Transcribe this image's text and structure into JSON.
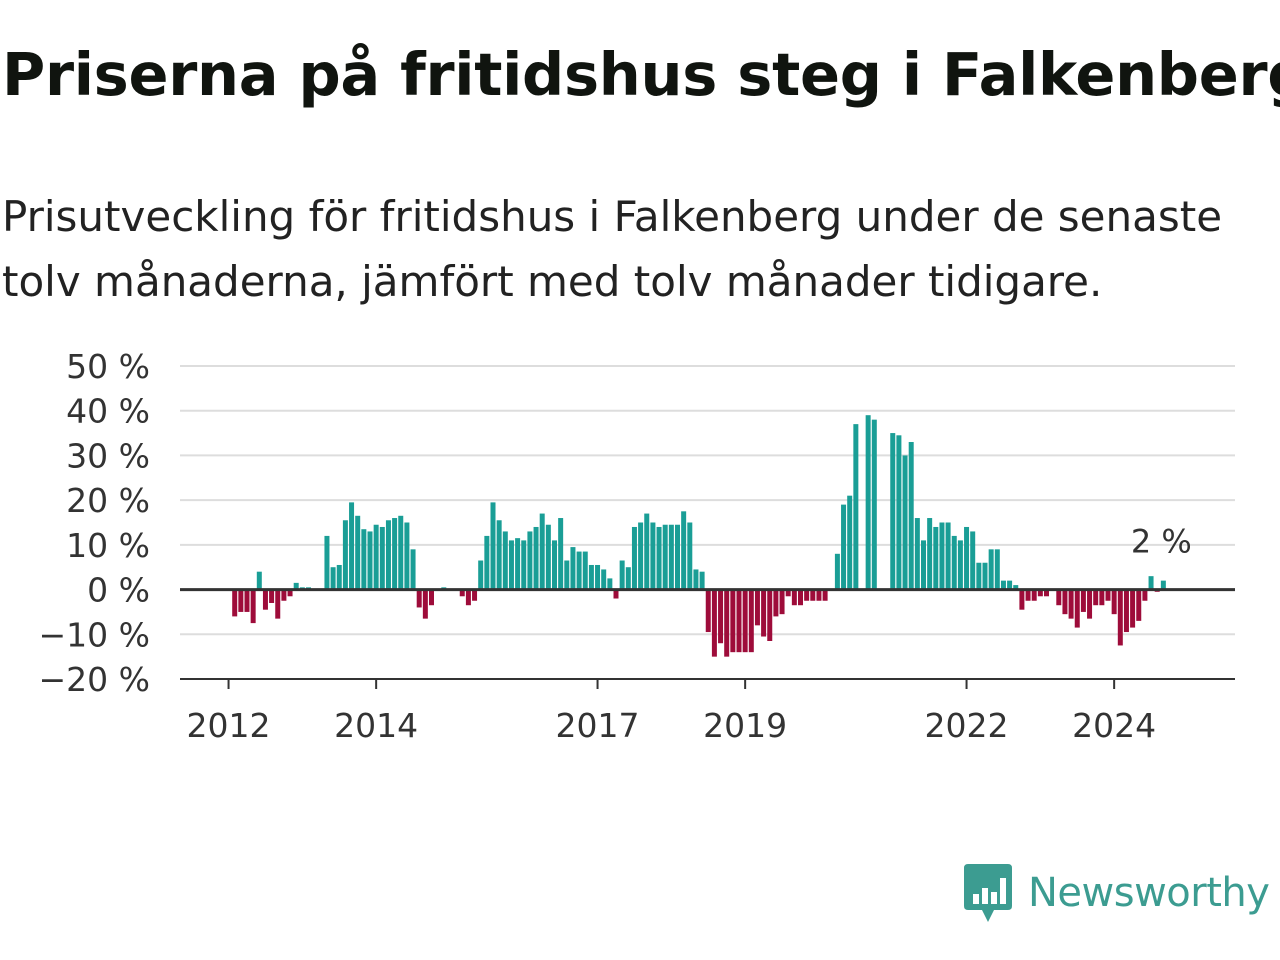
{
  "title": "Priserna på fritidshus steg i Falkenberg",
  "subtitle": "Prisutveckling för fritidshus i Falkenberg under de senaste tolv månaderna, jämfört med tolv månader tidigare.",
  "brand": {
    "name": "Newsworthy",
    "color": "#3c9c91"
  },
  "colors": {
    "positive": "#1a9e96",
    "negative": "#9e0c3a"
  },
  "chart_data": {
    "type": "bar",
    "title": "Priserna på fritidshus steg i Falkenberg",
    "subtitle": "Prisutveckling för fritidshus i Falkenberg under de senaste tolv månaderna, jämfört med tolv månader tidigare.",
    "unit": "%",
    "ylim": [
      -20,
      50
    ],
    "yticks": [
      50,
      40,
      30,
      20,
      10,
      0,
      -10,
      -20
    ],
    "ytick_labels": [
      "50 %",
      "40 %",
      "30 %",
      "20 %",
      "10 %",
      "0 %",
      "−10 %",
      "−20 %"
    ],
    "xtick_labels": [
      {
        "label": "2012",
        "month_index": 7
      },
      {
        "label": "2014",
        "month_index": 31
      },
      {
        "label": "2017",
        "month_index": 67
      },
      {
        "label": "2019",
        "month_index": 91
      },
      {
        "label": "2022",
        "month_index": 127
      },
      {
        "label": "2024",
        "month_index": 151
      }
    ],
    "grid": true,
    "legend": "none",
    "start": "2011-06",
    "end": "2025-05",
    "values": [
      null,
      null,
      null,
      null,
      null,
      null,
      null,
      null,
      -6,
      -5,
      -5,
      -7.5,
      4,
      -4.5,
      -3,
      -6.5,
      -2.5,
      -1.5,
      1.5,
      0.5,
      0.5,
      null,
      null,
      12,
      5,
      5.5,
      15.5,
      19.5,
      16.5,
      13.5,
      13,
      14.5,
      14,
      15.5,
      16,
      16.5,
      15,
      9,
      -4,
      -6.5,
      -3.5,
      null,
      0.5,
      null,
      null,
      -1.5,
      -3.5,
      -2.5,
      6.5,
      12,
      19.5,
      15.5,
      13,
      11,
      11.5,
      11,
      13,
      14,
      17,
      14.5,
      11,
      16,
      6.5,
      9.5,
      8.5,
      8.5,
      5.5,
      5.5,
      4.5,
      2.5,
      -2,
      6.5,
      5,
      14,
      15,
      17,
      15,
      14,
      14.5,
      14.5,
      14.5,
      17.5,
      15,
      4.5,
      4,
      -9.5,
      -15,
      -12,
      -15,
      -14,
      -14,
      -14,
      -14,
      -8,
      -10.5,
      -11.5,
      -6,
      -5.5,
      -1.5,
      -3.5,
      -3.5,
      -2.5,
      -2.5,
      -2.5,
      -2.5,
      null,
      8,
      19,
      21,
      37,
      null,
      39,
      38,
      null,
      null,
      35,
      34.5,
      30,
      33,
      16,
      11,
      16,
      14,
      15,
      15,
      12,
      11,
      14,
      13,
      6,
      6,
      9,
      9,
      2,
      2,
      1,
      -4.5,
      -2.5,
      -2.5,
      -1.5,
      -1.5,
      null,
      -3.5,
      -5.5,
      -6.5,
      -8.5,
      -5,
      -6.5,
      -3.5,
      -3.5,
      -2.5,
      -5.5,
      -12.5,
      -9.5,
      -8.5,
      -7,
      -2.5,
      3,
      -0.5,
      2
    ],
    "annotations": [
      {
        "text": "2 %",
        "value": 2,
        "target": "last"
      }
    ]
  }
}
